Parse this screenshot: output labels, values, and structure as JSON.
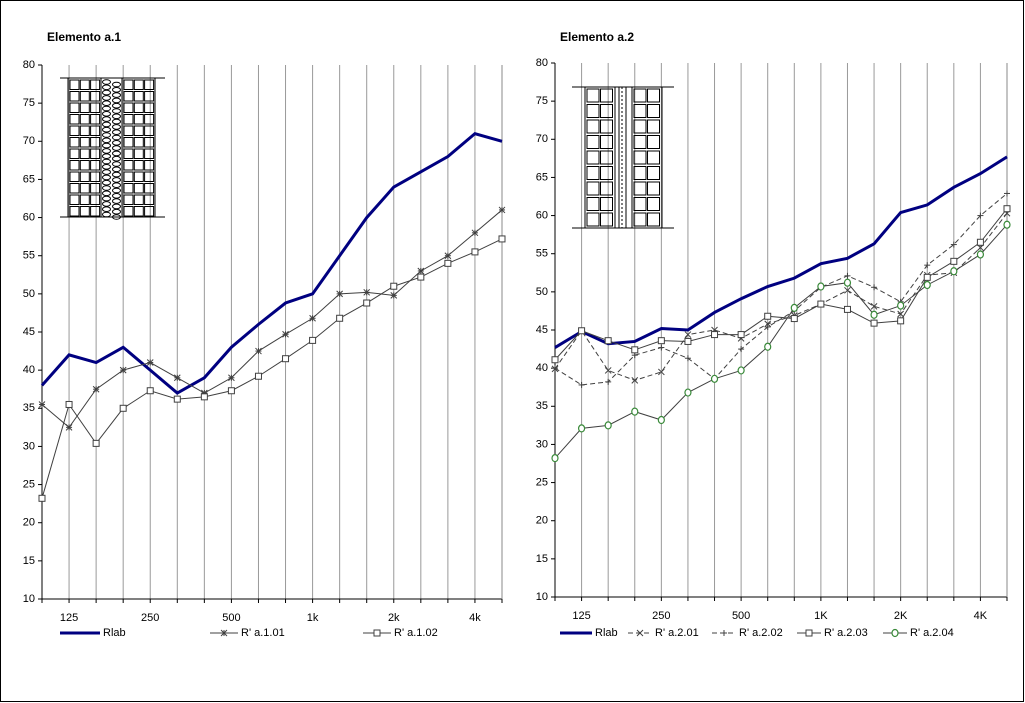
{
  "chart_data": [
    {
      "type": "line",
      "title": "Elemento a.1",
      "categories": [
        null,
        "125",
        null,
        null,
        "250",
        null,
        null,
        "500",
        null,
        null,
        "1k",
        null,
        null,
        "2k",
        null,
        null,
        "4k",
        null
      ],
      "ylim": [
        10,
        80
      ],
      "yticks": [
        10,
        15,
        20,
        25,
        30,
        35,
        40,
        45,
        50,
        55,
        60,
        65,
        70,
        75,
        80
      ],
      "xgrid": true,
      "series": [
        {
          "name": "Rlab",
          "color": "#000080",
          "marker": "none",
          "values": [
            38,
            42,
            41,
            43,
            40,
            37,
            39,
            43,
            46,
            48.8,
            50,
            55,
            60,
            64,
            66,
            68,
            71,
            70
          ]
        },
        {
          "name": "R' a.1.01",
          "color": "#404040",
          "marker": "star",
          "values": [
            35.5,
            32.5,
            37.5,
            40,
            41,
            39,
            37,
            39,
            42.5,
            44.7,
            46.8,
            50,
            50.2,
            49.8,
            53,
            55,
            58,
            61
          ]
        },
        {
          "name": "R' a.1.02",
          "color": "#404040",
          "marker": "square",
          "values": [
            23.2,
            35.5,
            30.4,
            35,
            37.3,
            36.2,
            36.5,
            37.3,
            39.2,
            41.5,
            43.9,
            46.8,
            48.8,
            51,
            52.2,
            54,
            55.5,
            57.2
          ]
        }
      ]
    },
    {
      "type": "line",
      "title": "Elemento a.2",
      "categories": [
        null,
        "125",
        null,
        null,
        "250",
        null,
        null,
        "500",
        null,
        null,
        "1K",
        null,
        null,
        "2K",
        null,
        null,
        "4K",
        null
      ],
      "ylim": [
        10,
        80
      ],
      "yticks": [
        10,
        15,
        20,
        25,
        30,
        35,
        40,
        45,
        50,
        55,
        60,
        65,
        70,
        75,
        80
      ],
      "xgrid": true,
      "series": [
        {
          "name": "Rlab",
          "color": "#000080",
          "marker": "none",
          "values": [
            42.7,
            44.8,
            43.2,
            43.5,
            45.2,
            45,
            47.3,
            49.1,
            50.7,
            51.8,
            53.7,
            54.4,
            56.3,
            60.4,
            61.4,
            63.7,
            65.5,
            67.7
          ]
        },
        {
          "name": "R' a.2.01",
          "color": "#404040",
          "marker": "x",
          "dashed": true,
          "values": [
            39.9,
            44.9,
            39.7,
            38.4,
            39.5,
            44.4,
            45,
            43.9,
            45.8,
            46.9,
            48.4,
            50.2,
            48.1,
            47.1,
            52.2,
            52.5,
            55.8,
            60.3
          ]
        },
        {
          "name": "R' a.2.02",
          "color": "#404040",
          "marker": "plus",
          "dashed": true,
          "values": [
            40,
            37.8,
            38.2,
            41.7,
            42.7,
            41.3,
            38.6,
            42.5,
            45.4,
            47.5,
            50.6,
            52.1,
            50.6,
            48.7,
            53.5,
            56.2,
            60,
            62.9
          ]
        },
        {
          "name": "R' a.2.03",
          "color": "#404040",
          "marker": "square",
          "values": [
            41.1,
            44.9,
            43.6,
            42.4,
            43.6,
            43.5,
            44.4,
            44.4,
            46.8,
            46.5,
            48.4,
            47.7,
            45.9,
            46.2,
            51.9,
            54,
            56.5,
            60.9
          ]
        },
        {
          "name": "R' a.2.04",
          "color": "#404040",
          "marker": "circle",
          "marker_color": "#3a8a3a",
          "values": [
            28.2,
            32.1,
            32.5,
            34.3,
            33.2,
            36.8,
            38.6,
            39.7,
            42.8,
            47.9,
            50.7,
            51.2,
            47,
            48.2,
            50.9,
            52.7,
            54.9,
            58.8
          ]
        }
      ]
    }
  ]
}
